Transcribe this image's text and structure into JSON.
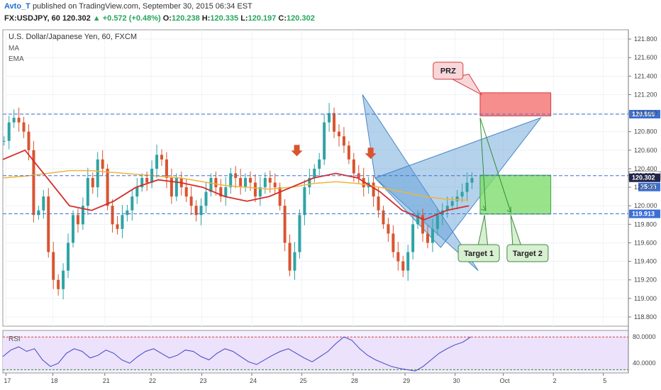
{
  "header": {
    "user": "Avto_T",
    "published": "published on TradingView.com, September 30, 2015 06:34 EST",
    "symbol": "FX:USDJPY, 60",
    "last": "120.302",
    "change": "+0.572 (+0.48%)",
    "open": "120.238",
    "high": "120.335",
    "low": "120.197",
    "close": "120.302"
  },
  "legend": {
    "instrument": "U.S. Dollar/Japanese Yen, 60, FXCM",
    "ma": "MA",
    "ema": "EMA",
    "rsi": "RSI"
  },
  "annotations": {
    "prz": "PRZ",
    "target1": "Target 1",
    "target2": "Target 2"
  },
  "price_tags": {
    "upper": "120.989",
    "level1": "120.325",
    "current": "120.302",
    "countdown": "25:23",
    "lower": "119.913"
  },
  "colors": {
    "up_candle": "#2fa3a3",
    "down_candle": "#d9542f",
    "ma": "#d62a2a",
    "ema": "#f0b43a",
    "harmonic_fill": "#5b9bd5",
    "prz_fill": "#f47a7a",
    "target_fill": "#7fdc6e",
    "dashed_level": "#3b6fd6",
    "rsi_line": "#4046c8"
  },
  "chart_data": {
    "type": "candlestick",
    "title": "U.S. Dollar/Japanese Yen, 60, FXCM",
    "ylim": [
      118.7,
      121.9
    ],
    "yticks": [
      118.8,
      119.0,
      119.2,
      119.4,
      119.6,
      119.8,
      120.0,
      120.2,
      120.4,
      120.6,
      120.8,
      121.0,
      121.2,
      121.4,
      121.6,
      121.8
    ],
    "ytick_labels": [
      "118.800",
      "119.000",
      "119.200",
      "119.400",
      "119.600",
      "119.800",
      "120.000",
      "120.200",
      "120.400",
      "120.600",
      "120.800",
      "121.000",
      "121.200",
      "121.400",
      "121.600",
      "121.800"
    ],
    "xtick_labels": [
      "17",
      "18",
      "21",
      "22",
      "23",
      "24",
      "25",
      "28",
      "29",
      "30",
      "Oct",
      "2",
      "5"
    ],
    "price_path": [
      [
        120.7,
        120.9,
        120.95,
        120.9,
        120.8,
        120.6,
        119.9,
        119.95,
        120.1,
        119.5,
        119.2,
        119.1,
        119.3,
        119.6,
        119.9,
        119.8
      ],
      [
        120.0,
        120.3,
        120.2,
        120.5,
        120.4,
        120.0,
        119.8,
        119.75,
        119.9,
        119.95,
        120.1,
        120.2,
        120.3,
        120.25,
        120.4,
        120.55
      ],
      [
        120.5,
        120.3,
        120.1,
        120.3,
        120.2,
        120.1,
        120.0,
        119.9,
        120.0,
        120.15,
        120.3,
        120.2,
        120.1,
        120.2,
        120.35,
        120.3
      ],
      [
        120.2,
        120.3,
        120.25,
        120.1,
        120.2,
        120.3,
        120.25,
        120.2,
        120.0,
        119.6,
        119.3,
        119.5,
        119.9,
        120.2,
        120.3,
        120.4
      ],
      [
        120.5,
        120.9,
        121.0,
        120.8,
        120.75,
        120.65,
        120.5,
        120.35,
        120.3,
        120.2,
        120.25,
        120.1,
        119.95,
        119.8,
        119.7,
        119.5
      ],
      [
        119.4,
        119.3,
        119.5,
        119.8,
        119.9,
        119.7,
        119.6,
        119.75,
        119.9,
        119.95,
        120.0,
        120.05,
        120.1,
        120.15,
        120.25,
        120.3
      ]
    ],
    "ma_path": [
      120.5,
      120.6,
      120.3,
      120.0,
      119.95,
      120.05,
      120.2,
      120.28,
      120.25,
      120.2,
      120.1,
      120.05,
      120.1,
      120.2,
      120.3,
      120.35,
      120.3,
      120.15,
      119.95,
      119.85,
      119.95,
      120.0
    ],
    "ema_path": [
      120.3,
      120.32,
      120.35,
      120.38,
      120.38,
      120.36,
      120.34,
      120.32,
      120.3,
      120.26,
      120.22,
      120.2,
      120.18,
      120.2,
      120.24,
      120.26,
      120.24,
      120.2,
      120.15,
      120.1,
      120.07,
      120.06
    ],
    "levels": [
      120.989,
      120.325,
      120.302,
      119.913
    ],
    "harmonic_pattern": {
      "X": [
        0.575,
        121.2
      ],
      "A": [
        0.76,
        119.3
      ],
      "B": [
        0.595,
        120.3
      ],
      "C": [
        0.7,
        119.55
      ],
      "D": [
        0.86,
        120.95
      ]
    },
    "prz_zone": [
      120.97,
      121.22
    ],
    "target_zone": [
      119.91,
      120.33
    ],
    "rsi": {
      "ylim": [
        25,
        90
      ],
      "ytick_labels": [
        "80.0000",
        "40.0000"
      ],
      "levels": [
        80,
        30
      ],
      "path": [
        50,
        60,
        65,
        58,
        62,
        45,
        35,
        40,
        55,
        62,
        58,
        48,
        52,
        60,
        55,
        45,
        40,
        50,
        58,
        62,
        55,
        48,
        52,
        60,
        58,
        50,
        45,
        55,
        62,
        58,
        50,
        42,
        38,
        45,
        52,
        58,
        62,
        55,
        48,
        42,
        50,
        58,
        70,
        80,
        75,
        62,
        52,
        45,
        40,
        35,
        32,
        30,
        28,
        35,
        45,
        55,
        62,
        68,
        72,
        80
      ]
    }
  }
}
